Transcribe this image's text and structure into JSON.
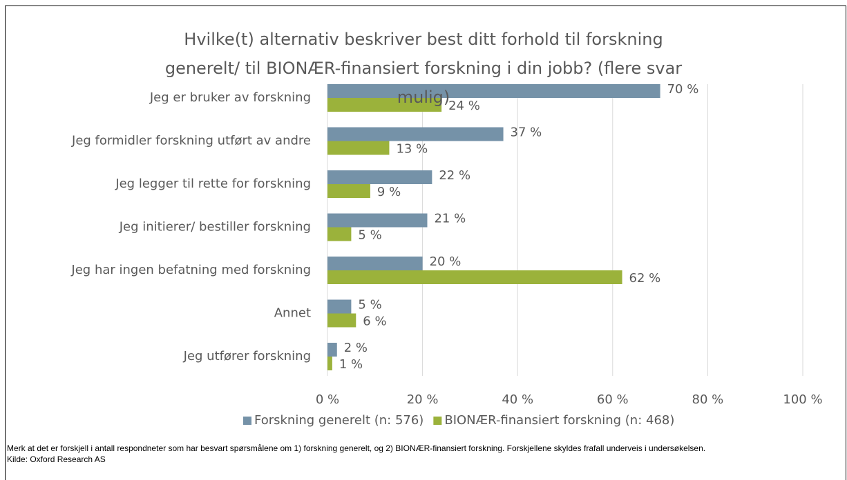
{
  "chart_data": {
    "type": "hbar",
    "title": "Hvilke(t) alternativ beskriver best ditt forhold til forskning generelt/ til BIONÆR-finansiert forskning i din jobb? (flere svar mulig)",
    "categories": [
      "Jeg er bruker av forskning",
      "Jeg formidler forskning utført av andre",
      "Jeg legger til rette for forskning",
      "Jeg initierer/ bestiller forskning",
      "Jeg har ingen befatning med forskning",
      "Annet",
      "Jeg utfører forskning"
    ],
    "series": [
      {
        "name": "Forskning generelt (n: 576)",
        "color": "#7592a8",
        "values": [
          70,
          37,
          22,
          21,
          20,
          5,
          2
        ],
        "value_labels": [
          "70 %",
          "37 %",
          "22 %",
          "21 %",
          "20 %",
          "5 %",
          "2 %"
        ]
      },
      {
        "name": "BIONÆR-finansiert forskning (n: 468)",
        "color": "#9bb23b",
        "values": [
          24,
          13,
          9,
          5,
          62,
          6,
          1
        ],
        "value_labels": [
          "24 %",
          "13 %",
          "9 %",
          "5 %",
          "62 %",
          "6 %",
          "1 %"
        ]
      }
    ],
    "xlim": [
      0,
      100
    ],
    "xticks": [
      {
        "value": 0,
        "label": "0 %"
      },
      {
        "value": 20,
        "label": "20 %"
      },
      {
        "value": 40,
        "label": "40 %"
      },
      {
        "value": 60,
        "label": "60 %"
      },
      {
        "value": 80,
        "label": "80 %"
      },
      {
        "value": 100,
        "label": "100 %"
      }
    ],
    "grid": true,
    "legend": "bottom"
  },
  "note": "Merk at det er forskjell i antall respondneter som har besvart spørsmålene om 1) forskning generelt, og 2) BIONÆR-finansiert forskning. Forskjellene skyldes frafall underveis i undersøkelsen.",
  "source": "Kilde: Oxford Research AS"
}
